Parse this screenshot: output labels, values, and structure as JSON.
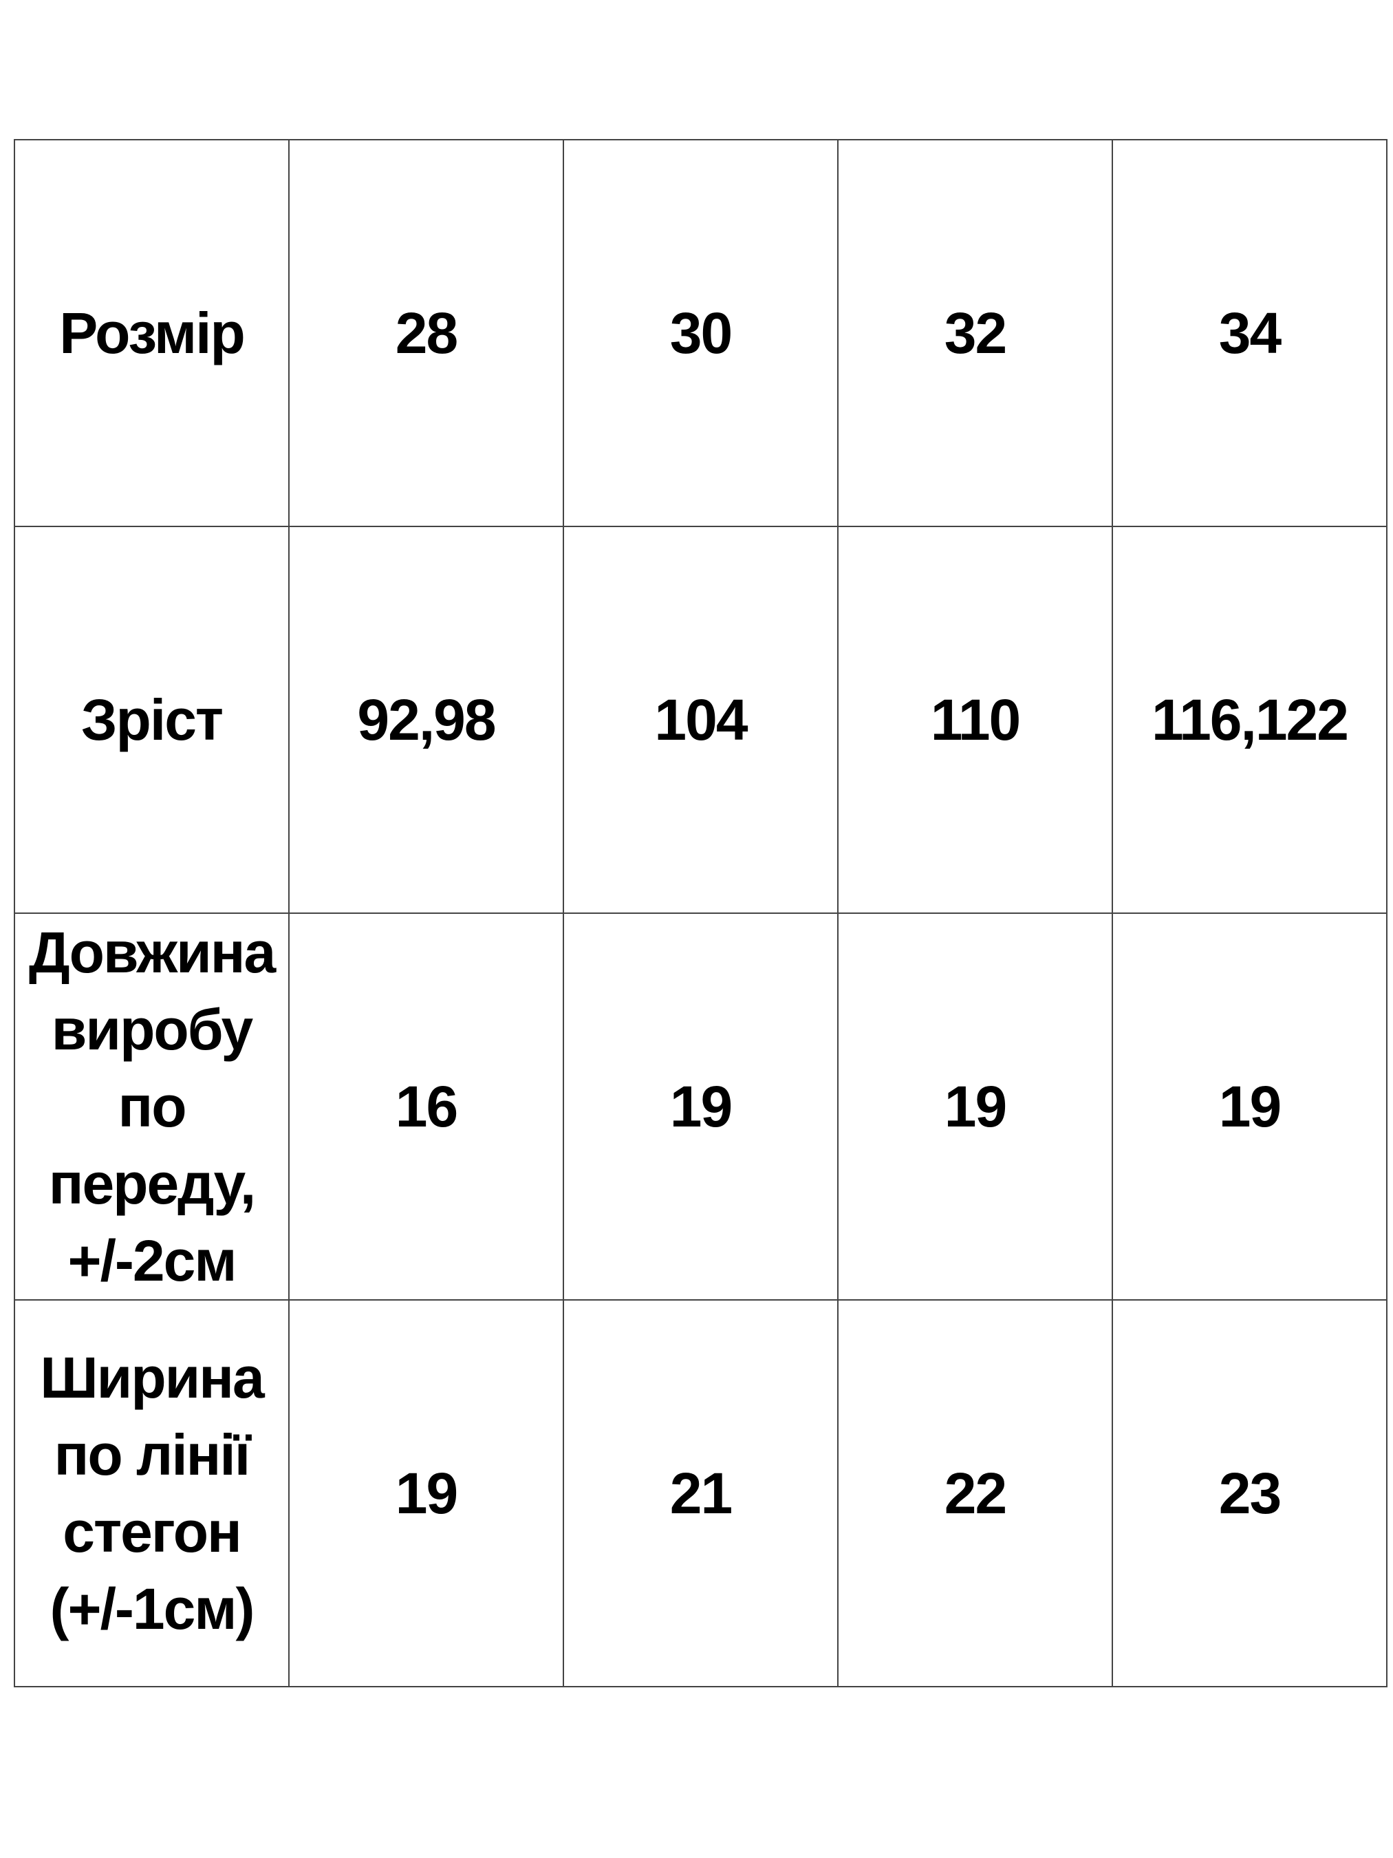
{
  "table": {
    "rows": [
      {
        "label": "Розмір",
        "values": [
          "28",
          "30",
          "32",
          "34"
        ]
      },
      {
        "label": "Зріст",
        "values": [
          "92,98",
          "104",
          "110",
          "116,122"
        ]
      },
      {
        "label": "Довжина виробу по переду, +/-2см",
        "values": [
          "16",
          "19",
          "19",
          "19"
        ]
      },
      {
        "label": "Ширина по лінії стегон (+/-1см)",
        "values": [
          "19",
          "21",
          "22",
          "23"
        ]
      }
    ]
  }
}
